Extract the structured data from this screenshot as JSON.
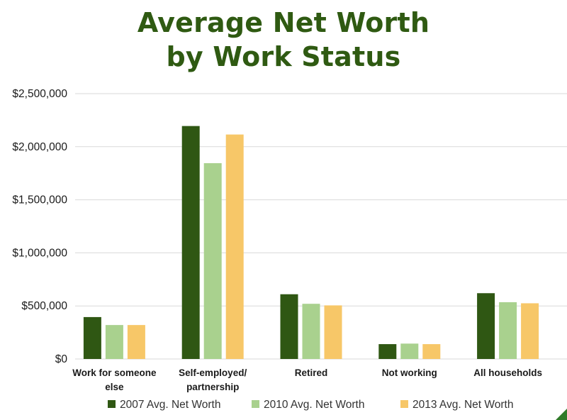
{
  "chart_data": {
    "type": "bar",
    "title_lines": [
      "Average Net Worth",
      "by Work Status"
    ],
    "categories": [
      [
        "Work for someone",
        "else"
      ],
      [
        "Self-employed/",
        "partnership"
      ],
      [
        "Retired"
      ],
      [
        "Not working"
      ],
      [
        "All households"
      ]
    ],
    "series": [
      {
        "name": "2007 Avg. Net Worth",
        "color": "#2f5713",
        "values": [
          395000,
          2195000,
          610000,
          140000,
          620000
        ]
      },
      {
        "name": "2010 Avg. Net Worth",
        "color": "#a9d18e",
        "values": [
          320000,
          1845000,
          520000,
          145000,
          535000
        ]
      },
      {
        "name": "2013 Avg. Net Worth",
        "color": "#f7c768",
        "values": [
          320000,
          2115000,
          505000,
          140000,
          525000
        ]
      }
    ],
    "ylim": [
      0,
      2500000
    ],
    "yticks": [
      0,
      500000,
      1000000,
      1500000,
      2000000,
      2500000
    ],
    "ytick_labels": [
      "$0",
      "$500,000",
      "$1,000,000",
      "$1,500,000",
      "$2,000,000",
      "$2,500,000"
    ],
    "grid": true,
    "legend_position": "bottom"
  }
}
